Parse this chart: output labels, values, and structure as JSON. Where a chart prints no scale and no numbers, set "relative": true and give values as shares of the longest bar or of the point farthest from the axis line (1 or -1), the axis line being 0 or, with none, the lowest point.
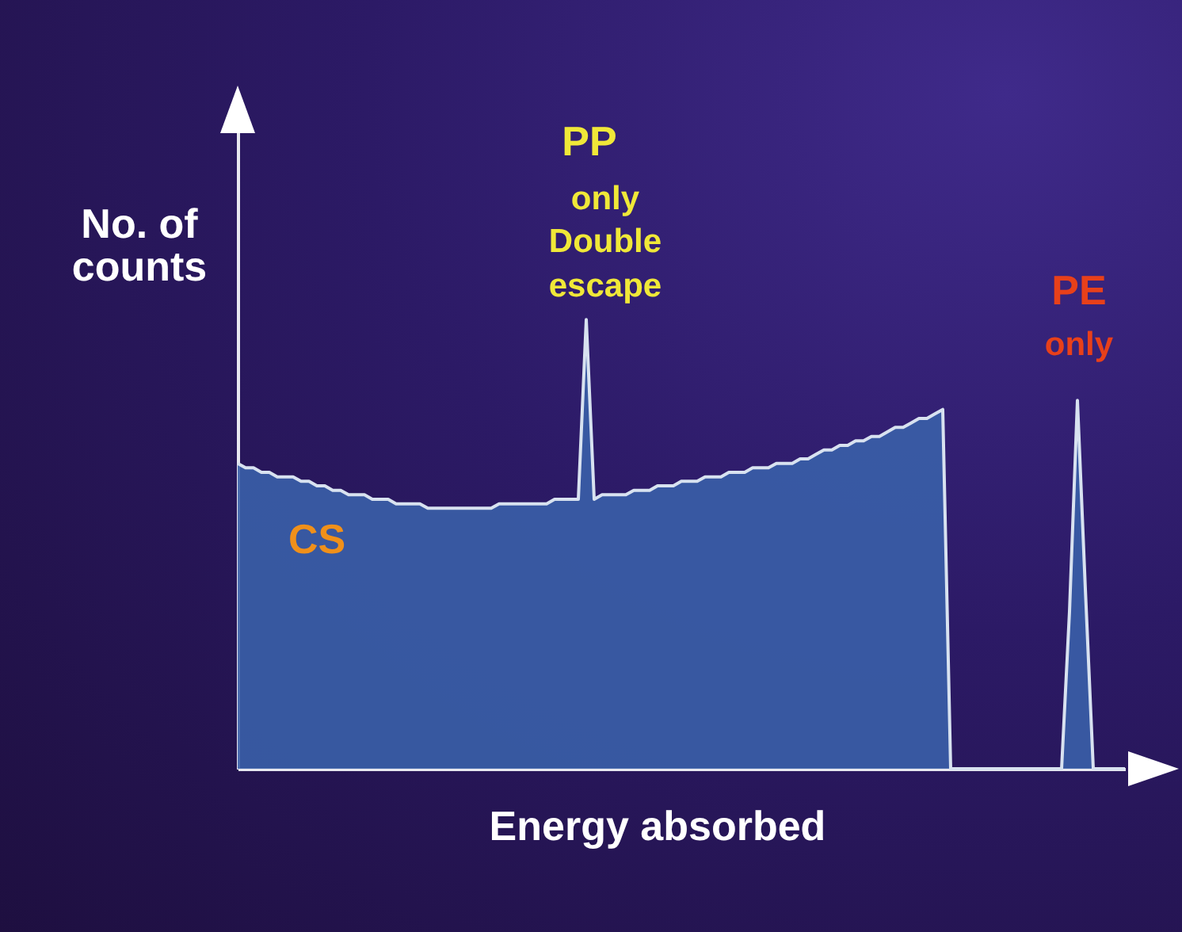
{
  "chart_data": {
    "type": "area",
    "relative": true,
    "xlabel": "Energy absorbed",
    "ylabel": "No. of counts",
    "annotations": [
      "PP",
      "only Double escape",
      "PE",
      "only",
      "CS"
    ],
    "categories": [
      null,
      null,
      null,
      null,
      null,
      null,
      null,
      null,
      null,
      null,
      null,
      null,
      null,
      null,
      null,
      null,
      null,
      null,
      null,
      null,
      null,
      null,
      null,
      null,
      null,
      null,
      null,
      null,
      null,
      null,
      null,
      null,
      null,
      null,
      null,
      null,
      null,
      null,
      null,
      null,
      null,
      null,
      null,
      null,
      null,
      null,
      null,
      null,
      null,
      null,
      null,
      null,
      null,
      null,
      null,
      null,
      null,
      null,
      null,
      null,
      null,
      null,
      null,
      null,
      null,
      null,
      null,
      null,
      null,
      null,
      null,
      null,
      null,
      null,
      null,
      null,
      null,
      null,
      null,
      null,
      null,
      null,
      null,
      null,
      null,
      null,
      null,
      null,
      null,
      null,
      null,
      null,
      null,
      null,
      null,
      null,
      null,
      null,
      null,
      null,
      null,
      null,
      null,
      null,
      null,
      null,
      null,
      null,
      null,
      null,
      null,
      null,
      null
    ],
    "series": [
      {
        "color": "#3a5fa8",
        "values": [
          0.68,
          0.67,
          0.67,
          0.66,
          0.66,
          0.65,
          0.65,
          0.65,
          0.64,
          0.64,
          0.63,
          0.63,
          0.62,
          0.62,
          0.61,
          0.61,
          0.61,
          0.6,
          0.6,
          0.6,
          0.59,
          0.59,
          0.59,
          0.59,
          0.58,
          0.58,
          0.58,
          0.58,
          0.58,
          0.58,
          0.58,
          0.58,
          0.58,
          0.59,
          0.59,
          0.59,
          0.59,
          0.59,
          0.59,
          0.59,
          0.6,
          0.6,
          0.6,
          0.6,
          1,
          0.6,
          0.61,
          0.61,
          0.61,
          0.61,
          0.62,
          0.62,
          0.62,
          0.63,
          0.63,
          0.63,
          0.64,
          0.64,
          0.64,
          0.65,
          0.65,
          0.65,
          0.66,
          0.66,
          0.66,
          0.67,
          0.67,
          0.67,
          0.68,
          0.68,
          0.68,
          0.69,
          0.69,
          0.7,
          0.71,
          0.71,
          0.72,
          0.72,
          0.73,
          0.73,
          0.74,
          0.74,
          0.75,
          0.76,
          0.76,
          0.77,
          0.78,
          0.78,
          0.79,
          0.8,
          0,
          0,
          0,
          0,
          0,
          0,
          0,
          0,
          0,
          0,
          0,
          0,
          0,
          0,
          0,
          0.35,
          0.82,
          0.4,
          0,
          0,
          0,
          0,
          0
        ]
      }
    ],
    "grid": false
  }
}
